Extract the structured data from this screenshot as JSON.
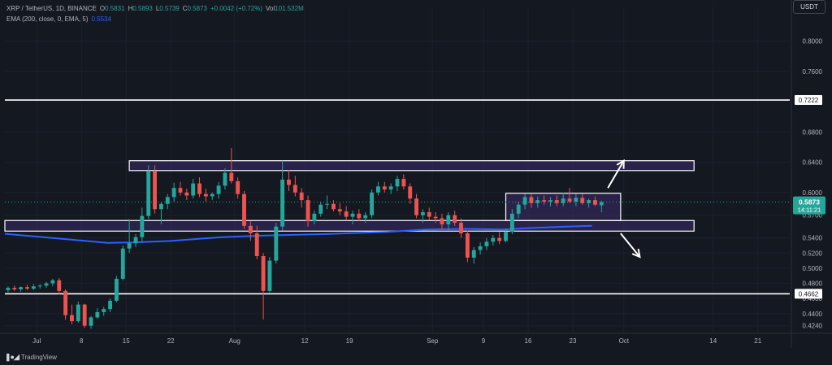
{
  "header": {
    "symbol": "XRP / TetherUS, 1D, BINANCE",
    "ohlc": {
      "o_label": "O",
      "o": "0.5831",
      "h_label": "H",
      "h": "0.5893",
      "l_label": "L",
      "l": "0.5739",
      "c_label": "C",
      "c": "0.5873",
      "change": "+0.0042 (+0.72%)",
      "vol_label": "Vol",
      "vol": "101.532M"
    },
    "ema_label": "EMA (200, close, 0, EMA, 5)",
    "ema_value": "0.5534"
  },
  "currency": "USDT",
  "logo_text": "TradingView",
  "colors": {
    "background": "#141820",
    "bull": "#26a69a",
    "bear": "#ef5350",
    "ema": "#2962ff",
    "level": "#ffffff",
    "zone_fill": "#3a2d6b",
    "price_tag": "#26a69a"
  },
  "chart_data": {
    "type": "candlestick",
    "x_ticks": [
      {
        "label": "Jul",
        "index": 5
      },
      {
        "label": "8",
        "index": 12
      },
      {
        "label": "15",
        "index": 19
      },
      {
        "label": "22",
        "index": 26
      },
      {
        "label": "Aug",
        "index": 36
      },
      {
        "label": "12",
        "index": 47
      },
      {
        "label": "19",
        "index": 54
      },
      {
        "label": "Sep",
        "index": 67
      },
      {
        "label": "9",
        "index": 75
      },
      {
        "label": "16",
        "index": 82
      },
      {
        "label": "23",
        "index": 89
      },
      {
        "label": "Oct",
        "index": 97
      },
      {
        "label": "14",
        "index": 111
      },
      {
        "label": "21",
        "index": 118
      }
    ],
    "y_ticks": [
      "0.8000",
      "0.7600",
      "0.6800",
      "0.6400",
      "0.6000",
      "0.5700",
      "0.5400",
      "0.5200",
      "0.5000",
      "0.4800",
      "0.4600",
      "0.4400",
      "0.4240"
    ],
    "y_tick_values": [
      0.8,
      0.76,
      0.68,
      0.64,
      0.6,
      0.57,
      0.54,
      0.52,
      0.5,
      0.48,
      0.46,
      0.44,
      0.424
    ],
    "ylim": [
      0.414,
      0.835
    ],
    "index_range": [
      0,
      123
    ],
    "last_price": {
      "label": "0.5873",
      "value": 0.5873,
      "countdown": "14:11:21"
    },
    "levels": [
      {
        "label": "0.7222",
        "value": 0.7222
      },
      {
        "label": "0.4662",
        "value": 0.4662
      }
    ],
    "zones": [
      {
        "name": "upper-resistance-zone",
        "from_index": 19.5,
        "to_index": 108,
        "top": 0.642,
        "bottom": 0.629
      },
      {
        "name": "lower-support-zone",
        "from_index": 0,
        "to_index": 108,
        "top": 0.563,
        "bottom": 0.549
      },
      {
        "name": "consolidation-box",
        "from_index": 78.5,
        "to_index": 96.5,
        "top": 0.599,
        "bottom": 0.563
      }
    ],
    "arrows": [
      {
        "name": "breakout-up-arrow",
        "from": [
          94.5,
          0.606
        ],
        "to": [
          97,
          0.642
        ]
      },
      {
        "name": "breakdown-down-arrow",
        "from": [
          96.5,
          0.546
        ],
        "to": [
          99.5,
          0.515
        ]
      }
    ],
    "ema": [
      [
        0,
        0.5455
      ],
      [
        10,
        0.538
      ],
      [
        16,
        0.5335
      ],
      [
        20,
        0.534
      ],
      [
        26,
        0.536
      ],
      [
        34,
        0.541
      ],
      [
        40,
        0.543
      ],
      [
        50,
        0.545
      ],
      [
        60,
        0.548
      ],
      [
        66,
        0.551
      ],
      [
        72,
        0.552
      ],
      [
        78,
        0.551
      ],
      [
        82,
        0.553
      ],
      [
        88,
        0.555
      ],
      [
        92,
        0.556
      ]
    ],
    "candles": [
      [
        0.471,
        0.476,
        0.468,
        0.474
      ],
      [
        0.474,
        0.477,
        0.47,
        0.472
      ],
      [
        0.472,
        0.476,
        0.469,
        0.475
      ],
      [
        0.475,
        0.478,
        0.471,
        0.473
      ],
      [
        0.473,
        0.479,
        0.471,
        0.476
      ],
      [
        0.476,
        0.479,
        0.473,
        0.477
      ],
      [
        0.477,
        0.482,
        0.474,
        0.48
      ],
      [
        0.48,
        0.486,
        0.476,
        0.484
      ],
      [
        0.484,
        0.487,
        0.465,
        0.47
      ],
      [
        0.47,
        0.472,
        0.432,
        0.438
      ],
      [
        0.438,
        0.452,
        0.426,
        0.43
      ],
      [
        0.43,
        0.456,
        0.428,
        0.452
      ],
      [
        0.452,
        0.453,
        0.421,
        0.424
      ],
      [
        0.424,
        0.437,
        0.42,
        0.435
      ],
      [
        0.435,
        0.447,
        0.433,
        0.442
      ],
      [
        0.442,
        0.449,
        0.437,
        0.446
      ],
      [
        0.446,
        0.46,
        0.442,
        0.457
      ],
      [
        0.457,
        0.49,
        0.455,
        0.486
      ],
      [
        0.486,
        0.53,
        0.484,
        0.526
      ],
      [
        0.526,
        0.565,
        0.52,
        0.533
      ],
      [
        0.533,
        0.545,
        0.528,
        0.541
      ],
      [
        0.541,
        0.58,
        0.535,
        0.569
      ],
      [
        0.569,
        0.636,
        0.565,
        0.628
      ],
      [
        0.628,
        0.636,
        0.572,
        0.578
      ],
      [
        0.578,
        0.587,
        0.558,
        0.585
      ],
      [
        0.585,
        0.598,
        0.578,
        0.594
      ],
      [
        0.594,
        0.613,
        0.588,
        0.606
      ],
      [
        0.606,
        0.614,
        0.596,
        0.6
      ],
      [
        0.6,
        0.605,
        0.59,
        0.596
      ],
      [
        0.596,
        0.618,
        0.592,
        0.612
      ],
      [
        0.612,
        0.62,
        0.594,
        0.598
      ],
      [
        0.598,
        0.605,
        0.588,
        0.595
      ],
      [
        0.595,
        0.6,
        0.59,
        0.598
      ],
      [
        0.598,
        0.614,
        0.592,
        0.609
      ],
      [
        0.609,
        0.632,
        0.604,
        0.626
      ],
      [
        0.626,
        0.659,
        0.612,
        0.615
      ],
      [
        0.615,
        0.62,
        0.592,
        0.598
      ],
      [
        0.598,
        0.602,
        0.552,
        0.556
      ],
      [
        0.556,
        0.562,
        0.536,
        0.546
      ],
      [
        0.546,
        0.556,
        0.512,
        0.516
      ],
      [
        0.516,
        0.52,
        0.432,
        0.47
      ],
      [
        0.47,
        0.515,
        0.468,
        0.51
      ],
      [
        0.51,
        0.56,
        0.506,
        0.555
      ],
      [
        0.555,
        0.642,
        0.55,
        0.617
      ],
      [
        0.617,
        0.63,
        0.602,
        0.61
      ],
      [
        0.61,
        0.622,
        0.595,
        0.6
      ],
      [
        0.6,
        0.606,
        0.58,
        0.59
      ],
      [
        0.59,
        0.596,
        0.555,
        0.562
      ],
      [
        0.562,
        0.576,
        0.558,
        0.572
      ],
      [
        0.572,
        0.588,
        0.568,
        0.584
      ],
      [
        0.584,
        0.596,
        0.578,
        0.585
      ],
      [
        0.585,
        0.59,
        0.575,
        0.578
      ],
      [
        0.578,
        0.586,
        0.57,
        0.575
      ],
      [
        0.575,
        0.582,
        0.563,
        0.568
      ],
      [
        0.568,
        0.576,
        0.558,
        0.572
      ],
      [
        0.572,
        0.578,
        0.562,
        0.566
      ],
      [
        0.566,
        0.574,
        0.56,
        0.57
      ],
      [
        0.57,
        0.604,
        0.566,
        0.6
      ],
      [
        0.6,
        0.614,
        0.596,
        0.608
      ],
      [
        0.608,
        0.614,
        0.6,
        0.604
      ],
      [
        0.604,
        0.612,
        0.598,
        0.608
      ],
      [
        0.608,
        0.622,
        0.602,
        0.618
      ],
      [
        0.618,
        0.624,
        0.604,
        0.608
      ],
      [
        0.608,
        0.612,
        0.585,
        0.592
      ],
      [
        0.592,
        0.598,
        0.566,
        0.57
      ],
      [
        0.57,
        0.578,
        0.56,
        0.574
      ],
      [
        0.574,
        0.58,
        0.564,
        0.568
      ],
      [
        0.568,
        0.574,
        0.56,
        0.566
      ],
      [
        0.566,
        0.572,
        0.552,
        0.558
      ],
      [
        0.558,
        0.574,
        0.55,
        0.57
      ],
      [
        0.57,
        0.576,
        0.556,
        0.56
      ],
      [
        0.56,
        0.566,
        0.54,
        0.546
      ],
      [
        0.546,
        0.55,
        0.508,
        0.514
      ],
      [
        0.514,
        0.528,
        0.506,
        0.524
      ],
      [
        0.524,
        0.534,
        0.518,
        0.529
      ],
      [
        0.529,
        0.54,
        0.524,
        0.535
      ],
      [
        0.535,
        0.544,
        0.53,
        0.54
      ],
      [
        0.54,
        0.548,
        0.532,
        0.536
      ],
      [
        0.536,
        0.552,
        0.534,
        0.548
      ],
      [
        0.548,
        0.578,
        0.545,
        0.572
      ],
      [
        0.572,
        0.588,
        0.566,
        0.584
      ],
      [
        0.584,
        0.598,
        0.578,
        0.594
      ],
      [
        0.594,
        0.598,
        0.58,
        0.586
      ],
      [
        0.586,
        0.595,
        0.58,
        0.59
      ],
      [
        0.59,
        0.596,
        0.584,
        0.588
      ],
      [
        0.588,
        0.594,
        0.582,
        0.59
      ],
      [
        0.59,
        0.596,
        0.582,
        0.586
      ],
      [
        0.586,
        0.6,
        0.582,
        0.592
      ],
      [
        0.592,
        0.606,
        0.586,
        0.588
      ],
      [
        0.588,
        0.598,
        0.582,
        0.593
      ],
      [
        0.593,
        0.598,
        0.584,
        0.586
      ],
      [
        0.586,
        0.592,
        0.58,
        0.59
      ],
      [
        0.59,
        0.595,
        0.582,
        0.584
      ],
      [
        0.5831,
        0.5893,
        0.5739,
        0.5873
      ]
    ]
  }
}
